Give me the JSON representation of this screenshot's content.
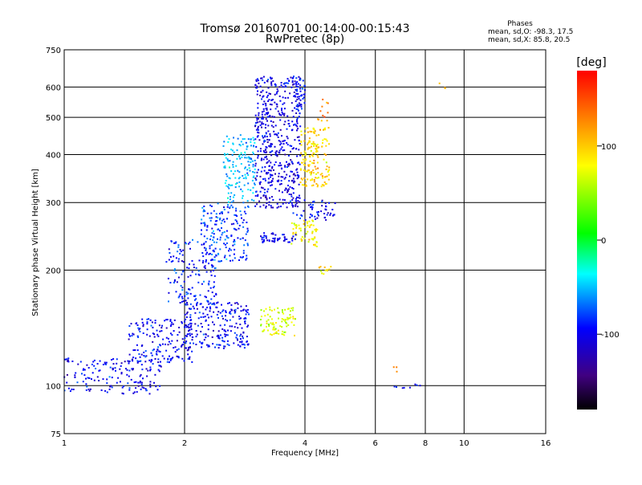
{
  "chart_data": {
    "type": "scatter",
    "title": "Tromsø 20160701 00:14:00-00:15:43",
    "subtitle": "RwPretec (8p)",
    "xlabel": "Frequency [MHz]",
    "ylabel": "Stationary phase Virtual Height [km]",
    "x_scale": "log",
    "y_scale": "log",
    "xlim": [
      1,
      16
    ],
    "ylim": [
      75,
      750
    ],
    "x_ticks": [
      1,
      2,
      4,
      6,
      8,
      10,
      16
    ],
    "x_tick_labels": [
      "1",
      "2",
      "4",
      "6",
      "8",
      "10",
      "16"
    ],
    "x_gridlines": [
      2,
      4,
      6,
      8,
      10
    ],
    "y_ticks": [
      75,
      100,
      200,
      300,
      400,
      500,
      600,
      750
    ],
    "y_tick_labels": [
      "75",
      "100",
      "200",
      "300",
      "400",
      "500",
      "600",
      "750"
    ],
    "y_gridlines": [
      100,
      200,
      300,
      400,
      500,
      600
    ],
    "grid": true,
    "phase_stats": {
      "heading": "Phases",
      "line_o": "mean, sd,O: -98.3, 17.5",
      "line_x": "mean, sd,X:  85.8, 20.5"
    },
    "colorbar": {
      "label": "[deg]",
      "range": [
        -180,
        180
      ],
      "ticks": [
        100,
        0,
        -100
      ],
      "tick_labels": [
        "100",
        "0",
        "-100"
      ],
      "colors": [
        "#ff0000",
        "#ff8000",
        "#ffff00",
        "#00ff00",
        "#00ffff",
        "#0000ff",
        "#400080",
        "#000000"
      ]
    },
    "clusters": [
      {
        "f": [
          1.0,
          1.75
        ],
        "h": [
          95,
          118
        ],
        "phase": -98,
        "n": 160
      },
      {
        "f": [
          1.45,
          2.1
        ],
        "h": [
          115,
          150
        ],
        "phase": -98,
        "n": 180
      },
      {
        "f": [
          2.0,
          2.9
        ],
        "h": [
          125,
          165
        ],
        "phase": -100,
        "n": 220
      },
      {
        "f": [
          1.8,
          2.4
        ],
        "h": [
          160,
          240
        ],
        "phase": -90,
        "n": 150
      },
      {
        "f": [
          2.2,
          2.9
        ],
        "h": [
          210,
          300
        ],
        "phase": -80,
        "n": 180
      },
      {
        "f": [
          2.5,
          3.0
        ],
        "h": [
          300,
          450
        ],
        "phase": -50,
        "n": 150
      },
      {
        "f": [
          3.0,
          3.9
        ],
        "h": [
          290,
          640
        ],
        "phase": -105,
        "n": 520
      },
      {
        "f": [
          3.8,
          4.0
        ],
        "h": [
          520,
          640
        ],
        "phase": -90,
        "n": 40
      },
      {
        "f": [
          3.9,
          4.6
        ],
        "h": [
          330,
          470
        ],
        "phase": 95,
        "n": 170
      },
      {
        "f": [
          3.7,
          4.3
        ],
        "h": [
          230,
          270
        ],
        "phase": 85,
        "n": 60
      },
      {
        "f": [
          3.1,
          3.8
        ],
        "h": [
          135,
          160
        ],
        "phase": 70,
        "n": 90
      },
      {
        "f": [
          3.7,
          4.8
        ],
        "h": [
          270,
          310
        ],
        "phase": -100,
        "n": 60
      },
      {
        "f": [
          3.1,
          3.8
        ],
        "h": [
          235,
          250
        ],
        "phase": -100,
        "n": 50
      },
      {
        "f": [
          4.3,
          4.6
        ],
        "h": [
          490,
          560
        ],
        "phase": 130,
        "n": 12
      },
      {
        "f": [
          4.3,
          4.7
        ],
        "h": [
          195,
          205
        ],
        "phase": 90,
        "n": 12
      },
      {
        "f": [
          6.7,
          7.8
        ],
        "h": [
          97,
          101
        ],
        "phase": -100,
        "n": 8
      },
      {
        "f": [
          6.5,
          6.8
        ],
        "h": [
          108,
          112
        ],
        "phase": 140,
        "n": 3
      },
      {
        "f": [
          8.6,
          9.0
        ],
        "h": [
          595,
          660
        ],
        "phase": 100,
        "n": 3
      }
    ]
  }
}
